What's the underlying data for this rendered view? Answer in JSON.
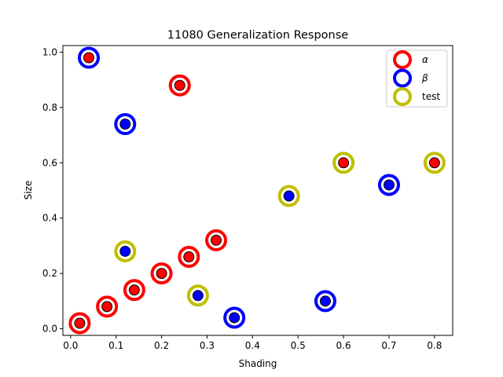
{
  "chart_data": {
    "type": "scatter",
    "title": "11080 Generalization Response",
    "xlabel": "Shading",
    "ylabel": "Size",
    "xlim": [
      -0.017,
      0.84
    ],
    "ylim": [
      -0.024,
      1.024
    ],
    "xticks": [
      0.0,
      0.1,
      0.2,
      0.3,
      0.4,
      0.5,
      0.6,
      0.7,
      0.8
    ],
    "xtick_labels": [
      "0.0",
      "0.1",
      "0.2",
      "0.3",
      "0.4",
      "0.5",
      "0.6",
      "0.7",
      "0.8"
    ],
    "yticks": [
      0.0,
      0.2,
      0.4,
      0.6,
      0.8,
      1.0
    ],
    "ytick_labels": [
      "0.0",
      "0.2",
      "0.4",
      "0.6",
      "0.8",
      "1.0"
    ],
    "grid": false,
    "legend_position": "top-right",
    "legend": [
      {
        "label": "α",
        "ring_color": "#ff0000"
      },
      {
        "label": "β",
        "ring_color": "#0000ff"
      },
      {
        "label": "test",
        "ring_color": "#bfbf00"
      }
    ],
    "colors": {
      "alpha": "#ff0000",
      "beta": "#0000ff",
      "test": "#bfbf00",
      "fill_red": "#ff0000",
      "fill_blue": "#0000ff"
    },
    "points": [
      {
        "x": 0.02,
        "y": 0.02,
        "group": "alpha",
        "fill": "red"
      },
      {
        "x": 0.08,
        "y": 0.08,
        "group": "alpha",
        "fill": "red"
      },
      {
        "x": 0.14,
        "y": 0.14,
        "group": "alpha",
        "fill": "red"
      },
      {
        "x": 0.2,
        "y": 0.2,
        "group": "alpha",
        "fill": "red"
      },
      {
        "x": 0.26,
        "y": 0.26,
        "group": "alpha",
        "fill": "red"
      },
      {
        "x": 0.32,
        "y": 0.32,
        "group": "alpha",
        "fill": "red"
      },
      {
        "x": 0.04,
        "y": 0.98,
        "group": "beta",
        "fill": "red"
      },
      {
        "x": 0.24,
        "y": 0.88,
        "group": "alpha",
        "fill": "red"
      },
      {
        "x": 0.12,
        "y": 0.74,
        "group": "beta",
        "fill": "blue"
      },
      {
        "x": 0.36,
        "y": 0.04,
        "group": "beta",
        "fill": "blue"
      },
      {
        "x": 0.56,
        "y": 0.1,
        "group": "beta",
        "fill": "blue"
      },
      {
        "x": 0.7,
        "y": 0.52,
        "group": "beta",
        "fill": "blue"
      },
      {
        "x": 0.12,
        "y": 0.28,
        "group": "test",
        "fill": "blue"
      },
      {
        "x": 0.28,
        "y": 0.12,
        "group": "test",
        "fill": "blue"
      },
      {
        "x": 0.48,
        "y": 0.48,
        "group": "test",
        "fill": "blue"
      },
      {
        "x": 0.6,
        "y": 0.6,
        "group": "test",
        "fill": "red"
      },
      {
        "x": 0.8,
        "y": 0.6,
        "group": "test",
        "fill": "red"
      }
    ]
  }
}
